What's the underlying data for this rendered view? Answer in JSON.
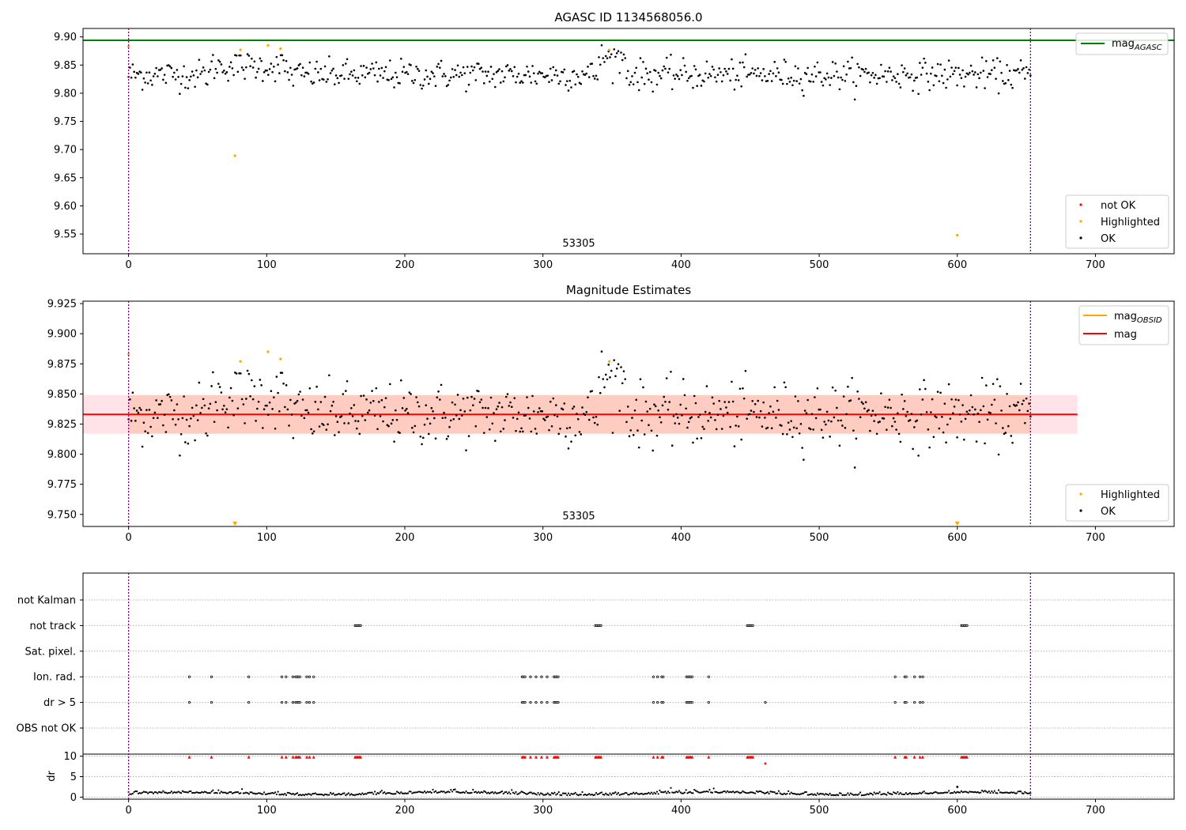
{
  "colors": {
    "ok": "#000000",
    "not_ok": "#ff0000",
    "highlighted": "#ffa500",
    "mag_agasc": "#008000",
    "mag_obsid": "#ffa500",
    "mag": "#ff0000",
    "band_outer": "#ffc0cb",
    "band_inner": "#ffa07a",
    "vline": "#800080",
    "grid": "#b0b0b0"
  },
  "chart_data": [
    {
      "type": "scatter",
      "title": "AGASC ID 1134568056.0",
      "annotation": "53305",
      "xlim": [
        -33,
        757
      ],
      "ylim": [
        9.515,
        9.915
      ],
      "xticks": [
        0,
        100,
        200,
        300,
        400,
        500,
        600,
        700
      ],
      "yticks": [
        9.55,
        9.6,
        9.65,
        9.7,
        9.75,
        9.8,
        9.85,
        9.9
      ],
      "vlines": [
        0,
        653
      ],
      "hline": {
        "name": "mag_AGASC",
        "y": 9.894
      },
      "legend_lines": [
        {
          "label": "mag",
          "sub": "AGASC"
        }
      ],
      "legend_points": [
        "not OK",
        "Highlighted",
        "OK"
      ],
      "ok_series": {
        "n_points": 653,
        "x_start": 0,
        "x_end": 653,
        "mean": 9.833,
        "scatter": 0.013
      },
      "highlighted": [
        {
          "x": 0,
          "y": 9.883
        },
        {
          "x": 77,
          "y": 9.689
        },
        {
          "x": 81,
          "y": 9.877
        },
        {
          "x": 101,
          "y": 9.885
        },
        {
          "x": 110,
          "y": 9.879
        },
        {
          "x": 348,
          "y": 9.877
        },
        {
          "x": 600,
          "y": 9.548
        }
      ]
    },
    {
      "type": "scatter",
      "title": "Magnitude Estimates",
      "annotation": "53305",
      "xlim": [
        -33,
        757
      ],
      "ylim": [
        9.74,
        9.927
      ],
      "xticks": [
        0,
        100,
        200,
        300,
        400,
        500,
        600,
        700
      ],
      "yticks": [
        9.75,
        9.775,
        9.8,
        9.825,
        9.85,
        9.875,
        9.9,
        9.925
      ],
      "vlines": [
        0,
        653
      ],
      "mag": 9.833,
      "band_outer": [
        9.817,
        9.849
      ],
      "band_inner": [
        9.817,
        9.849
      ],
      "band_x_range": [
        -33,
        687
      ],
      "inner_band_x_range": [
        0,
        653
      ],
      "legend_lines": [
        {
          "label": "mag",
          "sub": "OBSID"
        },
        {
          "label": "mag",
          "sub": ""
        }
      ],
      "legend_points": [
        "Highlighted",
        "OK"
      ],
      "highlighted": [
        {
          "x": 0,
          "y": 9.883
        },
        {
          "x": 81,
          "y": 9.877
        },
        {
          "x": 101,
          "y": 9.885
        },
        {
          "x": 110,
          "y": 9.879
        },
        {
          "x": 348,
          "y": 9.877
        }
      ],
      "off_scale_markers": [
        77,
        600
      ]
    },
    {
      "type": "scatter",
      "title": "",
      "xlim": [
        -33,
        757
      ],
      "xticks": [
        0,
        100,
        200,
        300,
        400,
        500,
        600,
        700
      ],
      "vlines": [
        0,
        653
      ],
      "flag_rows": [
        "not Kalman",
        "not track",
        "Sat. pixel.",
        "Ion. rad.",
        "dr > 5",
        "OBS not OK"
      ],
      "flags": {
        "not Kalman": [],
        "not track": [
          164,
          165,
          166,
          167,
          168,
          338,
          339,
          340,
          341,
          342,
          448,
          449,
          450,
          451,
          452,
          603,
          604,
          605,
          606,
          607
        ],
        "Sat. pixel.": [],
        "Ion. rad.": [
          44,
          60,
          87,
          111,
          114,
          119,
          121,
          122,
          123,
          124,
          129,
          131,
          134,
          285,
          286,
          287,
          291,
          295,
          299,
          303,
          308,
          309,
          310,
          311,
          380,
          383,
          386,
          387,
          404,
          405,
          406,
          407,
          408,
          420,
          555,
          562,
          563,
          569,
          573,
          575
        ],
        "dr > 5": [
          44,
          60,
          87,
          111,
          114,
          119,
          121,
          122,
          123,
          124,
          129,
          131,
          134,
          285,
          286,
          287,
          291,
          295,
          299,
          303,
          308,
          309,
          310,
          311,
          380,
          383,
          386,
          387,
          404,
          405,
          406,
          407,
          408,
          420,
          461,
          555,
          562,
          563,
          569,
          573,
          575
        ],
        "OBS not OK": []
      },
      "dr": {
        "ylabel": "dr",
        "ylim": [
          -0.5,
          10.5
        ],
        "yticks": [
          0,
          5,
          10
        ],
        "baseline": 0.7,
        "capped": [
          44,
          60,
          87,
          111,
          114,
          119,
          121,
          122,
          123,
          124,
          129,
          131,
          134,
          164,
          165,
          166,
          167,
          168,
          285,
          286,
          287,
          291,
          295,
          299,
          303,
          308,
          309,
          310,
          311,
          338,
          339,
          340,
          341,
          342,
          380,
          383,
          386,
          387,
          404,
          405,
          406,
          407,
          408,
          420,
          448,
          449,
          450,
          451,
          452,
          555,
          562,
          563,
          569,
          573,
          575,
          603,
          604,
          605,
          606,
          607
        ],
        "outliers": [
          {
            "x": 461,
            "y": 8.2
          },
          {
            "x": 600,
            "y": 2.5
          }
        ]
      }
    }
  ]
}
